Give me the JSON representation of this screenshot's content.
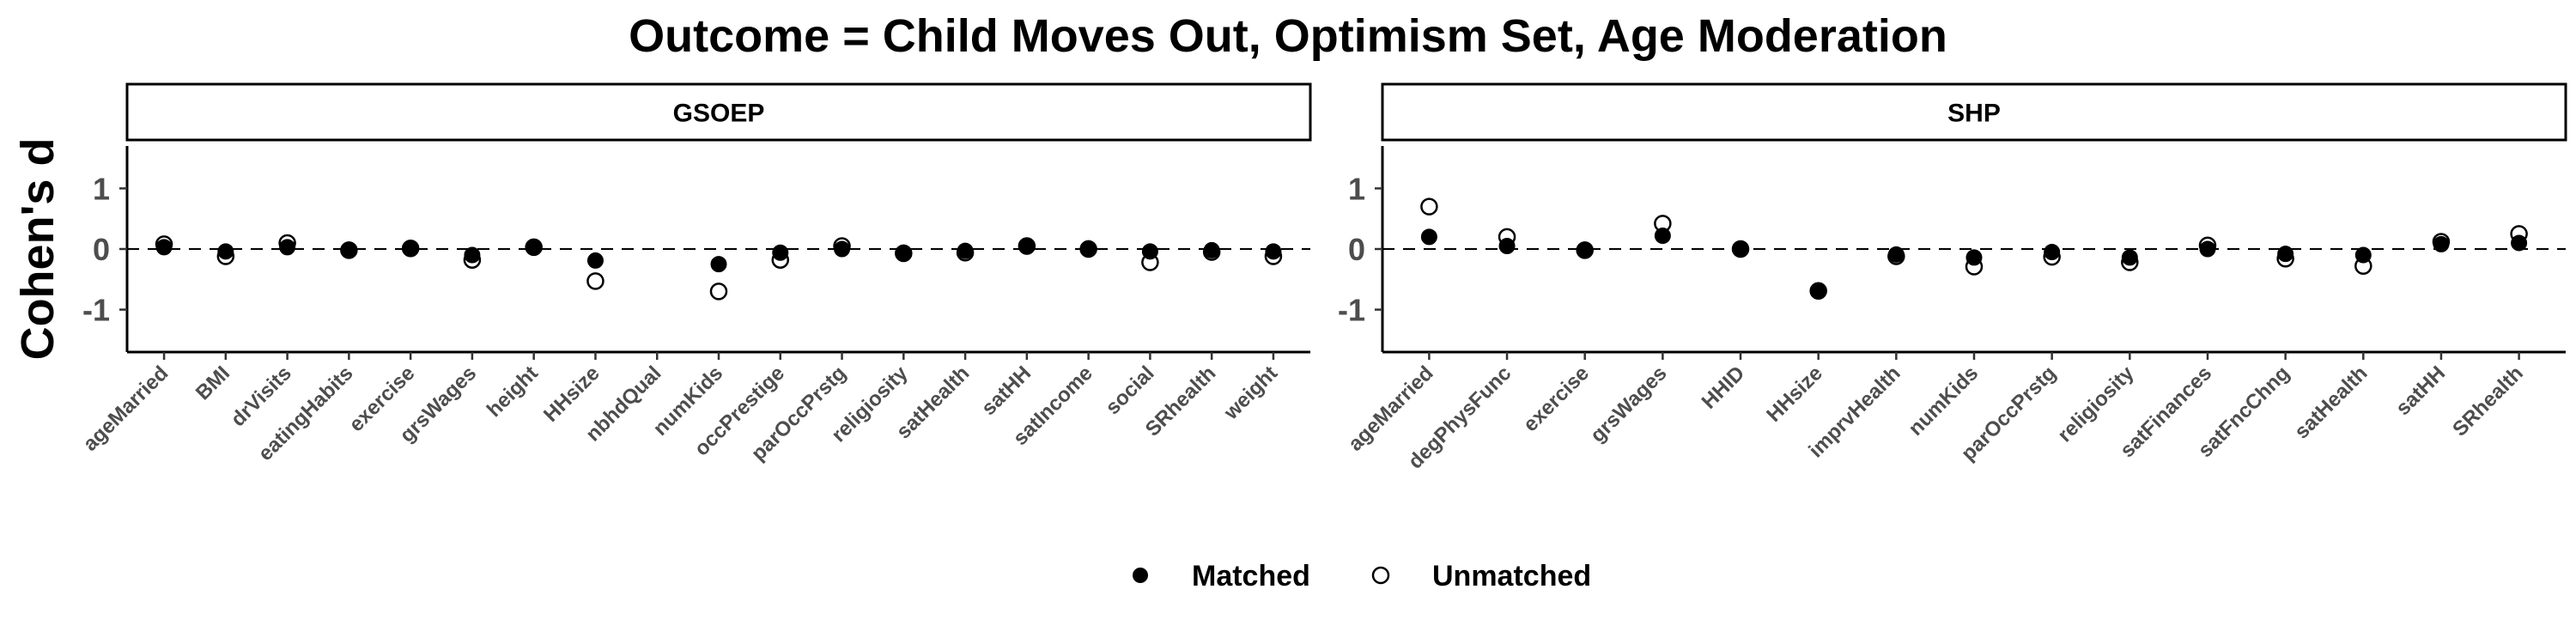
{
  "chart_data": {
    "type": "scatter",
    "title": "Outcome = Child Moves Out, Optimism Set, Age Moderation",
    "ylabel": "Cohen's d",
    "xlabel": "",
    "ylim": [
      -1.7,
      1.7
    ],
    "yticks": [
      -1,
      0,
      1
    ],
    "reference_line": 0,
    "grid": false,
    "legend": {
      "placement": "bottom",
      "entries": [
        {
          "name": "Matched",
          "marker": "filled-circle"
        },
        {
          "name": "Unmatched",
          "marker": "open-circle"
        }
      ]
    },
    "panels": [
      {
        "name": "GSOEP",
        "categories": [
          "ageMarried",
          "BMI",
          "drVisits",
          "eatingHabits",
          "exercise",
          "grsWages",
          "height",
          "HHsize",
          "nbhdQual",
          "numKids",
          "occPrestige",
          "parOccPrstg",
          "religiosity",
          "satHealth",
          "satHH",
          "satIncome",
          "social",
          "SRhealth",
          "weight"
        ],
        "series": [
          {
            "name": "Matched",
            "values": [
              0.03,
              -0.04,
              0.03,
              -0.01,
              0.01,
              -0.1,
              0.03,
              -0.19,
              null,
              -0.25,
              -0.06,
              0.0,
              -0.06,
              -0.03,
              0.04,
              0.01,
              -0.04,
              -0.02,
              -0.04
            ]
          },
          {
            "name": "Unmatched",
            "values": [
              0.08,
              -0.12,
              0.1,
              -0.02,
              0.01,
              -0.18,
              0.03,
              -0.53,
              null,
              -0.7,
              -0.18,
              0.05,
              -0.07,
              -0.06,
              0.05,
              0.0,
              -0.22,
              -0.05,
              -0.12
            ]
          }
        ]
      },
      {
        "name": "SHP",
        "categories": [
          "ageMarried",
          "degPhysFunc",
          "exercise",
          "grsWages",
          "HHID",
          "HHsize",
          "imprvHealth",
          "numKids",
          "parOccPrstg",
          "religiosity",
          "satFinances",
          "satFncChng",
          "satHealth",
          "satHH",
          "SRhealth"
        ],
        "series": [
          {
            "name": "Matched",
            "values": [
              0.2,
              0.05,
              -0.01,
              0.22,
              0.0,
              -0.69,
              -0.09,
              -0.14,
              -0.05,
              -0.14,
              0.0,
              -0.08,
              -0.1,
              0.08,
              0.1
            ]
          },
          {
            "name": "Unmatched",
            "values": [
              0.7,
              0.2,
              -0.02,
              0.42,
              0.0,
              -0.69,
              -0.12,
              -0.29,
              -0.13,
              -0.22,
              0.06,
              -0.16,
              -0.28,
              0.12,
              0.25
            ]
          }
        ]
      }
    ]
  }
}
